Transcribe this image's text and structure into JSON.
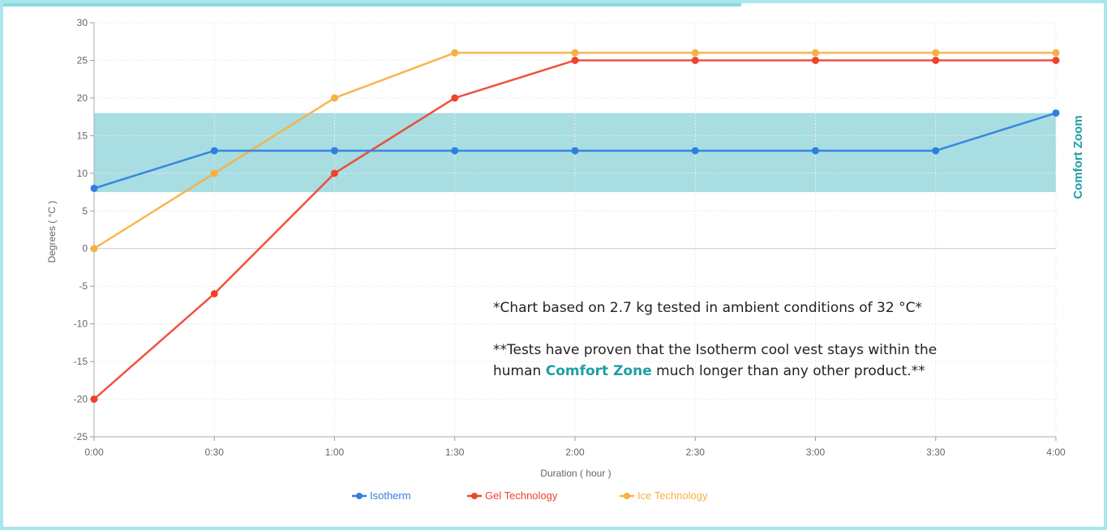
{
  "chart_data": {
    "type": "line",
    "title": "",
    "xlabel": "Duration ( hour )",
    "ylabel": "Degrees ( °C )",
    "x": [
      "0:00",
      "0:30",
      "1:00",
      "1:30",
      "2:00",
      "2:30",
      "3:00",
      "3:30",
      "4:00"
    ],
    "ylim": [
      -25,
      30
    ],
    "yticks": [
      30,
      25,
      20,
      15,
      10,
      5,
      0,
      -5,
      -10,
      -15,
      -20,
      -25
    ],
    "grid": true,
    "legend_position": "bottom",
    "series": [
      {
        "name": "Isotherm",
        "color": "#2f7fe0",
        "values": [
          8,
          13,
          13,
          13,
          13,
          13,
          13,
          13,
          18
        ]
      },
      {
        "name": "Gel Technology",
        "color": "#f0422c",
        "values": [
          -20,
          -6,
          10,
          20,
          25,
          25,
          25,
          25,
          25
        ]
      },
      {
        "name": "Ice Technology",
        "color": "#f6b140",
        "values": [
          0,
          10,
          20,
          26,
          26,
          26,
          26,
          26,
          26
        ]
      }
    ],
    "comfort_zone": {
      "label": "Comfort Zoom",
      "range": [
        7.5,
        18
      ],
      "color": "#a8dde2",
      "label_color": "#1f9ea4"
    }
  },
  "notes": {
    "line1": "*Chart based on 2.7 kg tested in ambient conditions of 32 °C*",
    "line2_pre": "**Tests have proven that the Isotherm cool vest stays within the human ",
    "line2_highlight": "Comfort Zone",
    "line2_post": " much longer than any other product.**"
  }
}
